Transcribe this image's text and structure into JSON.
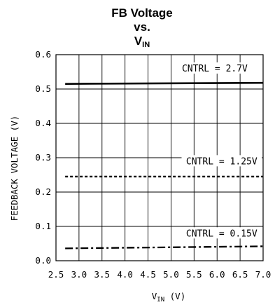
{
  "chart_data": {
    "type": "line",
    "title": {
      "line1": "FB Voltage",
      "line2": "vs.",
      "line3_main": "V",
      "line3_sub": "IN"
    },
    "xlabel": {
      "main": "V",
      "sub": "IN",
      "unit": " (V)"
    },
    "ylabel": "FEEDBACK VOLTAGE (V)",
    "xlim": [
      2.5,
      7.0
    ],
    "ylim": [
      0.0,
      0.6
    ],
    "x_ticks": [
      "2.5",
      "3.0",
      "3.5",
      "4.0",
      "4.5",
      "5.0",
      "5.5",
      "6.0",
      "6.5",
      "7.0"
    ],
    "y_ticks": [
      "0.0",
      "0.1",
      "0.2",
      "0.3",
      "0.4",
      "0.5",
      "0.6"
    ],
    "grid": true,
    "series": [
      {
        "name": "CNTRL = 2.7V",
        "style": "solid",
        "x": [
          2.7,
          7.0
        ],
        "y": [
          0.515,
          0.518
        ]
      },
      {
        "name": "CNTRL = 1.25V",
        "style": "dotted",
        "x": [
          2.7,
          7.0
        ],
        "y": [
          0.245,
          0.245
        ]
      },
      {
        "name": "CNTRL = 0.15V",
        "style": "dashdot",
        "x": [
          2.7,
          7.0
        ],
        "y": [
          0.036,
          0.042
        ]
      }
    ],
    "annotations": [
      {
        "text": "CNTRL = 2.7V",
        "x": 5.95,
        "y": 0.555
      },
      {
        "text": "CNTRL = 1.25V",
        "x": 6.1,
        "y": 0.285
      },
      {
        "text": "CNTRL = 0.15V",
        "x": 6.1,
        "y": 0.075
      }
    ],
    "color": "#000000"
  }
}
